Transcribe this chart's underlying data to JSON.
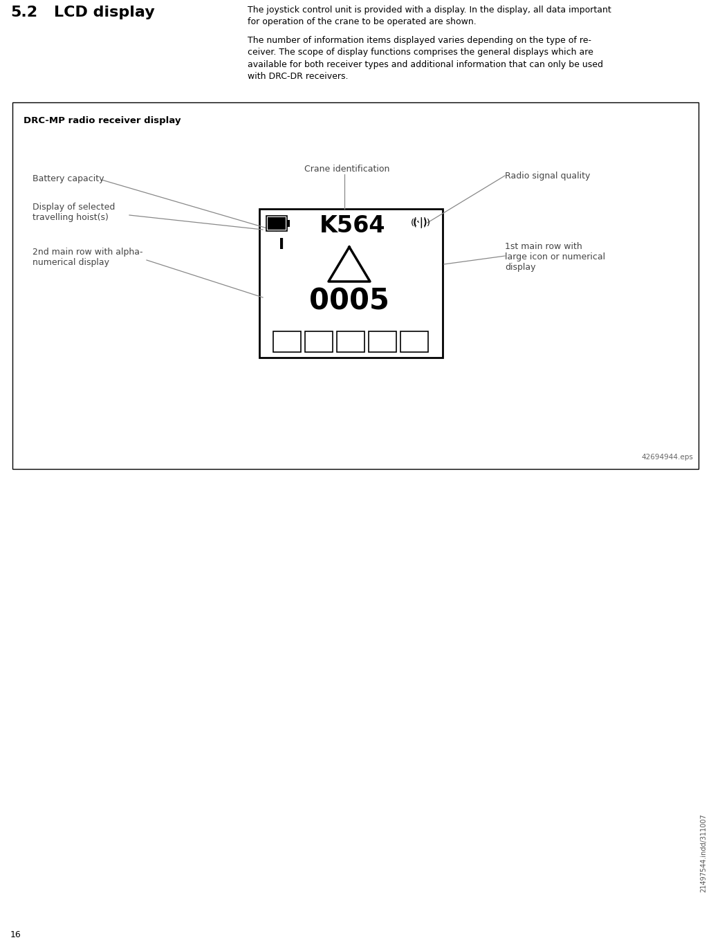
{
  "page_bg": "#ffffff",
  "section_number": "5.2",
  "section_title": "LCD display",
  "body_text_1": "The joystick control unit is provided with a display. In the display, all data important\nfor operation of the crane to be operated are shown.",
  "body_text_2": "The number of information items displayed varies depending on the type of re-\nceiver. The scope of display functions comprises the general displays which are\navailable for both receiver types and additional information that can only be used\nwith DRC-DR receivers.",
  "box_title": "DRC-MP radio receiver display",
  "label_battery": "Battery capacity",
  "label_crane_id": "Crane identification",
  "label_radio": "Radio signal quality",
  "label_hoist_1": "Display of selected",
  "label_hoist_2": "travelling hoist(s)",
  "label_2nd_row_1": "2nd main row with alpha-",
  "label_2nd_row_2": "numerical display",
  "label_1st_row_1": "1st main row with",
  "label_1st_row_2": "large icon or numerical",
  "label_1st_row_3": "display",
  "display_crane_id": "K564",
  "display_number": "0005",
  "eps_ref": "42694944.eps",
  "page_number": "16",
  "page_side_text": "21497544.indd/311007",
  "line_color": "#888888",
  "text_color": "#000000",
  "label_color": "#444444"
}
